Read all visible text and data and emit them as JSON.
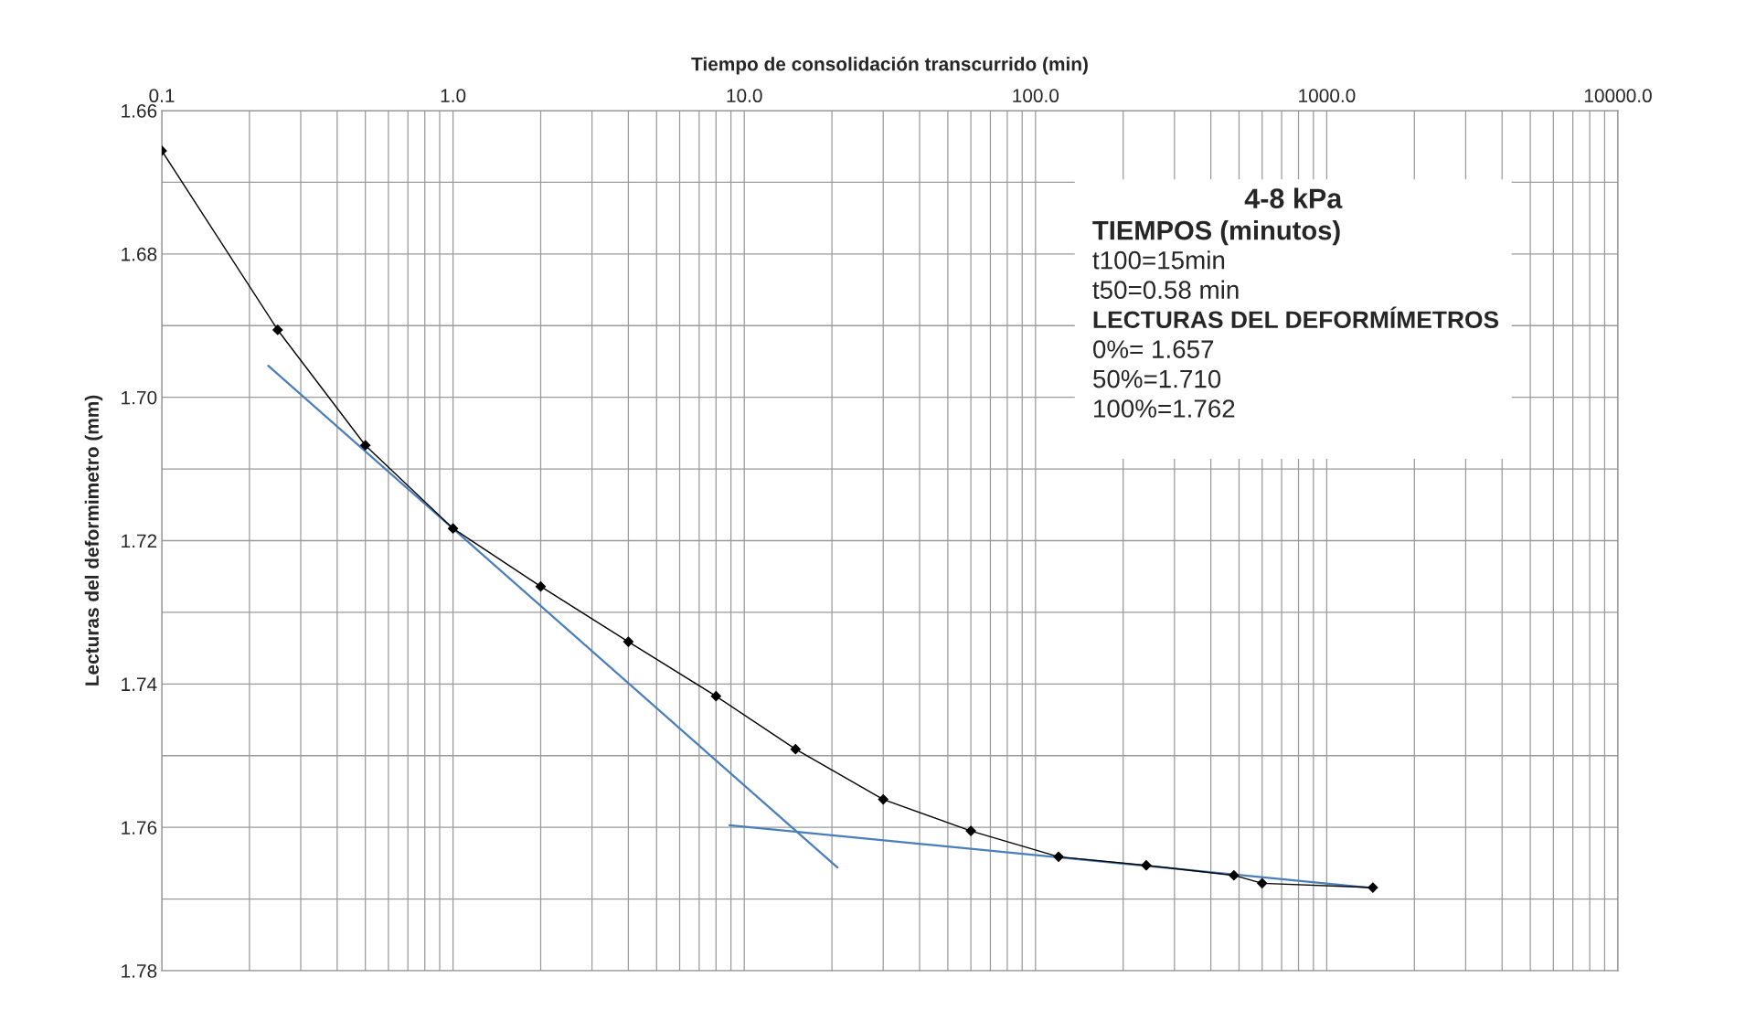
{
  "chart_data": {
    "type": "line",
    "xlabel": "Tiempo de consolidación transcurrido (min)",
    "ylabel": "Lecturas del deformimetro (mm)",
    "log": "x",
    "xlim": [
      0.1,
      10000
    ],
    "xticks": [
      {
        "value": 0.1,
        "label": "0.1"
      },
      {
        "value": 1,
        "label": "1.0"
      },
      {
        "value": 10,
        "label": "10.0"
      },
      {
        "value": 100,
        "label": "100.0"
      },
      {
        "value": 1000,
        "label": "1000.0"
      },
      {
        "value": 10000,
        "label": "10000.0"
      }
    ],
    "ylim": [
      1.78,
      1.66
    ],
    "yticks": [
      {
        "value": 1.66,
        "label": "1.66"
      },
      {
        "value": 1.67,
        "label": null
      },
      {
        "value": 1.68,
        "label": "1.68"
      },
      {
        "value": 1.69,
        "label": null
      },
      {
        "value": 1.7,
        "label": "1.70"
      },
      {
        "value": 1.71,
        "label": null
      },
      {
        "value": 1.72,
        "label": "1.72"
      },
      {
        "value": 1.73,
        "label": null
      },
      {
        "value": 1.74,
        "label": "1.74"
      },
      {
        "value": 1.75,
        "label": null
      },
      {
        "value": 1.76,
        "label": "1.76"
      },
      {
        "value": 1.77,
        "label": null
      },
      {
        "value": 1.78,
        "label": "1.78"
      }
    ],
    "grid": true,
    "legend": false,
    "series": [
      {
        "color": "#000000",
        "marker": "diamond",
        "x": [
          0.1,
          0.25,
          0.5,
          1,
          2,
          4,
          8,
          15,
          30,
          60,
          120,
          240,
          480,
          600,
          1440
        ],
        "values": [
          1.6656,
          1.6906,
          1.7067,
          1.7183,
          1.7264,
          1.7341,
          1.7417,
          1.7491,
          1.7561,
          1.7605,
          1.7641,
          1.7653,
          1.7667,
          1.7678,
          1.7684
        ]
      },
      {
        "color": "#4a7ebb",
        "marker": "none",
        "x": [
          0.232,
          20.9
        ],
        "values": [
          1.6956,
          1.7656
        ]
      },
      {
        "color": "#4a7ebb",
        "marker": "none",
        "x": [
          8.9,
          1390
        ],
        "values": [
          1.7597,
          1.7684
        ]
      }
    ],
    "annotations": [
      "4-8 kPa",
      "TIEMPOS (minutos)",
      "t100=15min",
      "t50=0.58 min",
      "LECTURAS DEL DEFORMÍMETROS",
      "0%= 1.657",
      "50%=1.710",
      "100%=1.762"
    ]
  }
}
